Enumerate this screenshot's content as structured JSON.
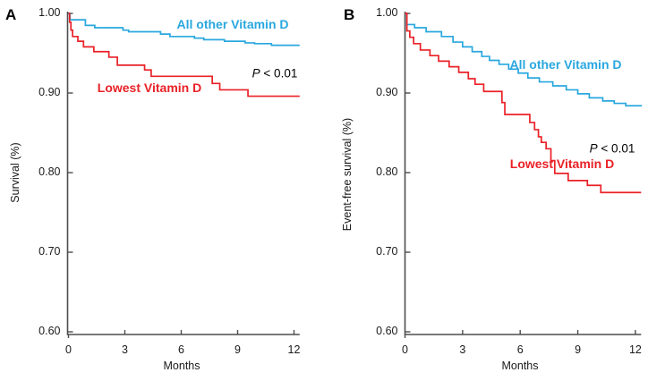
{
  "page": {
    "panel_letters": [
      "A",
      "B"
    ]
  },
  "chart_data": [
    {
      "type": "line",
      "subtype": "kaplan-meier-step",
      "panel": "A",
      "xlabel": "Months",
      "ylabel": "Survival (%)",
      "xlim": [
        0,
        12
      ],
      "ylim": [
        0.6,
        1.0
      ],
      "xticks": [
        0,
        3,
        6,
        9,
        12
      ],
      "yticks": [
        1.0,
        0.9,
        0.8,
        0.7,
        0.6
      ],
      "ytick_labels": [
        "1.00",
        "0.90",
        "0.80",
        "0.70",
        "0.60"
      ],
      "grid": false,
      "legend_position": "in-plot-text",
      "annotation": {
        "p_italic": "P",
        "p_rest": " < 0.01"
      },
      "series": [
        {
          "name": "All other Vitamin D",
          "color": "#29a7df",
          "points": [
            [
              0,
              1.0
            ],
            [
              0.08,
              0.992
            ],
            [
              0.9,
              0.985
            ],
            [
              1.4,
              0.982
            ],
            [
              2.9,
              0.979
            ],
            [
              3.2,
              0.977
            ],
            [
              4.9,
              0.974
            ],
            [
              5.4,
              0.971
            ],
            [
              6.7,
              0.969
            ],
            [
              7.2,
              0.967
            ],
            [
              8.3,
              0.965
            ],
            [
              9.4,
              0.963
            ],
            [
              9.9,
              0.962
            ],
            [
              10.8,
              0.96
            ],
            [
              12.3,
              0.96
            ]
          ]
        },
        {
          "name": "Lowest Vitamin D",
          "color": "#e92127",
          "points": [
            [
              0,
              1.0
            ],
            [
              0.06,
              0.989
            ],
            [
              0.13,
              0.979
            ],
            [
              0.22,
              0.971
            ],
            [
              0.5,
              0.965
            ],
            [
              0.8,
              0.958
            ],
            [
              1.35,
              0.952
            ],
            [
              2.15,
              0.945
            ],
            [
              2.6,
              0.935
            ],
            [
              4.05,
              0.929
            ],
            [
              4.4,
              0.921
            ],
            [
              7.65,
              0.912
            ],
            [
              8.05,
              0.904
            ],
            [
              9.55,
              0.896
            ],
            [
              12.3,
              0.896
            ]
          ]
        }
      ]
    },
    {
      "type": "line",
      "subtype": "kaplan-meier-step",
      "panel": "B",
      "xlabel": "Months",
      "ylabel": "Event-free survival (%)",
      "xlim": [
        0,
        12
      ],
      "ylim": [
        0.6,
        1.0
      ],
      "xticks": [
        0,
        3,
        6,
        9,
        12
      ],
      "yticks": [
        1.0,
        0.9,
        0.8,
        0.7,
        0.6
      ],
      "ytick_labels": [
        "1.00",
        "0.90",
        "0.80",
        "0.70",
        "0.60"
      ],
      "grid": false,
      "legend_position": "in-plot-text",
      "annotation": {
        "p_italic": "P",
        "p_rest": " < 0.01"
      },
      "series": [
        {
          "name": "All other Vitamin D",
          "color": "#29a7df",
          "points": [
            [
              0,
              1.0
            ],
            [
              0.1,
              0.986
            ],
            [
              0.5,
              0.982
            ],
            [
              1.1,
              0.977
            ],
            [
              1.9,
              0.971
            ],
            [
              2.5,
              0.964
            ],
            [
              3.0,
              0.958
            ],
            [
              3.5,
              0.952
            ],
            [
              4.0,
              0.946
            ],
            [
              4.4,
              0.941
            ],
            [
              4.9,
              0.936
            ],
            [
              5.4,
              0.93
            ],
            [
              5.9,
              0.925
            ],
            [
              6.4,
              0.919
            ],
            [
              7.0,
              0.914
            ],
            [
              7.7,
              0.909
            ],
            [
              8.4,
              0.904
            ],
            [
              9.0,
              0.899
            ],
            [
              9.6,
              0.894
            ],
            [
              10.3,
              0.89
            ],
            [
              10.9,
              0.887
            ],
            [
              11.5,
              0.884
            ],
            [
              12.3,
              0.883
            ]
          ]
        },
        {
          "name": "Lowest Vitamin D",
          "color": "#e92127",
          "points": [
            [
              0,
              1.0
            ],
            [
              0.1,
              0.978
            ],
            [
              0.25,
              0.97
            ],
            [
              0.45,
              0.962
            ],
            [
              0.8,
              0.954
            ],
            [
              1.3,
              0.947
            ],
            [
              1.75,
              0.94
            ],
            [
              2.3,
              0.933
            ],
            [
              2.8,
              0.926
            ],
            [
              3.3,
              0.918
            ],
            [
              3.65,
              0.911
            ],
            [
              4.1,
              0.902
            ],
            [
              5.05,
              0.888
            ],
            [
              5.2,
              0.873
            ],
            [
              6.5,
              0.863
            ],
            [
              6.75,
              0.854
            ],
            [
              6.95,
              0.845
            ],
            [
              7.1,
              0.838
            ],
            [
              7.35,
              0.83
            ],
            [
              7.6,
              0.815
            ],
            [
              7.8,
              0.799
            ],
            [
              8.5,
              0.79
            ],
            [
              9.5,
              0.784
            ],
            [
              10.2,
              0.775
            ],
            [
              12.3,
              0.775
            ]
          ]
        }
      ]
    }
  ]
}
